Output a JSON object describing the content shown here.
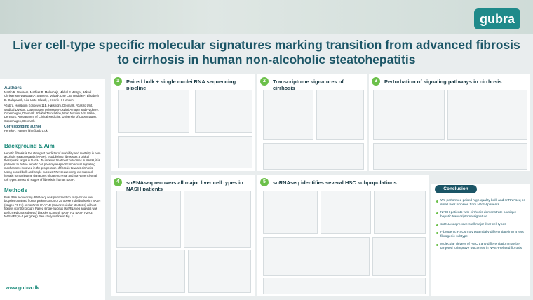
{
  "header": {
    "logo": "gubra",
    "title": "Liver cell-type specific molecular signatures marking transition from advanced fibrosis to cirrhosis in human non-alcoholic steatohepatitis"
  },
  "sidebar": {
    "authors_heading": "Authors",
    "authors": "Martin R. Madsen¹, Mathias B. Møllerhøj¹, Mikkel P. Werge², Mikkel Christensen-Dalsgaard¹, Sanne S. Veidal¹, Lise C.B. Rudkjær¹, Elisabeth D. Galsgaard³, Lise Lotte Gluud²,⁴, Henrik H. Hansen¹",
    "affiliations": "¹Gubra, Hørsholm Kongevej 11B, Hørsholm, Denmark. ²Gastro Unit, Medical Division, Copenhagen University Hospital Amager and Hvidovre, Copenhagen, Denmark. ³Global Translation, Novo Nordisk A/S, Måløv, Denmark. ⁴Department of Clinical Medicine, University of Copenhagen, Copenhagen, Denmark.",
    "corresponding_heading": "Corresponding author",
    "corresponding": "Henrik H. Hansen hhh@gubra.dk",
    "background_heading": "Background & Aim",
    "background": "Hepatic fibrosis is the strongest predictor of morbidity and mortality in non-alcoholic steatohepatitis (NASH), establishing fibrosis as a critical therapeutic target in NASH. To improve treatment outcomes in NASH, it is pertinent to define hepatic cell phenotype-specific molecular signalling mechanisms involved in the progression of fibrosis towards cirrhosis. Using pooled bulk and single-nucleus RNA sequencing, we mapped hepatic transcriptome signatures of parenchymal and non-parenchymal cell types across all stages of fibrosis in human NASH.",
    "methods_heading": "Methods",
    "methods": "Bulk RNA sequencing (RNAseq) was performed on snap-frozen liver biopsies obtained from a patient cohort of 29 obese individuals with NASH (stages F0-F4) or nonNASH NAFLD (macrovesicular steatosis) without fibrosis (control group). Paired single-nucleus (sn)RNAseq analysis was performed on a subset of biopsies (Control, NASH F1, NASH F2-F3, NASH F4; n=4 per group). See study outline in Fig. 1.",
    "website": "www.gubra.dk"
  },
  "sections": [
    {
      "number": "1",
      "title": "Paired bulk + single nuclei RNA sequencing pipeline"
    },
    {
      "number": "2",
      "title": "Transcriptome signatures of cirrhosis"
    },
    {
      "number": "3",
      "title": "Perturbation of signaling pathways in cirrhosis"
    },
    {
      "number": "4",
      "title": "snRNAseq recovers all major liver cell types in NASH patients"
    },
    {
      "number": "5",
      "title": "snRNAseq identifies several HSC subpopulations"
    }
  ],
  "conclusion": {
    "heading": "Conclusion",
    "bullets": [
      "We performed paired high-quality bulk and snRNAseq on small liver biopsies from NASH patients",
      "NASH patients with cirrhosis demonstrate a unique hepatic transcriptome signature",
      "snRNAseq recovers all major liver cell types",
      "Fibrogenic HSCs may potentially differentiate into a less fibrogenic subtype",
      "Molecular drivers of HSC trans-differentiation may be targeted to improve outcomes in NASH-related fibrosis"
    ]
  }
}
